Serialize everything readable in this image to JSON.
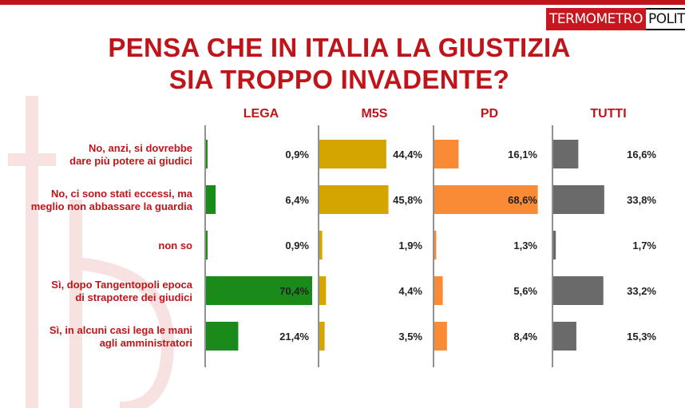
{
  "header": {
    "title_line1": "PENSA CHE IN ITALIA LA GIUSTIZIA",
    "title_line2": "SIA TROPPO INVADENTE?",
    "logo_part1": "TERMOMETRO",
    "logo_part2": "POLITICO"
  },
  "colors": {
    "title": "#c0141a",
    "lega": "#1a8a1a",
    "m5s": "#d4a500",
    "pd": "#f98a36",
    "tutti": "#6a6a6a"
  },
  "chart_data": {
    "type": "bar",
    "orientation": "horizontal",
    "title": "PENSA CHE IN ITALIA LA GIUSTIZIA SIA TROPPO INVADENTE?",
    "categories": [
      "No, anzi, si dovrebbe\ndare più potere ai giudici",
      "No, ci sono stati eccessi, ma\nmeglio non abbassare la guardia",
      "non so",
      "Sì, dopo Tangentopoli epoca\ndi strapotere dei giudici",
      "Sì, in alcuni casi lega le mani\nagli amministratori"
    ],
    "series": [
      {
        "name": "LEGA",
        "values": [
          0.9,
          6.4,
          0.9,
          70.4,
          21.4
        ],
        "labels": [
          "0,9%",
          "6,4%",
          "0,9%",
          "70,4%",
          "21,4%"
        ],
        "color": "#1a8a1a"
      },
      {
        "name": "M5S",
        "values": [
          44.4,
          45.8,
          1.9,
          4.4,
          3.5
        ],
        "labels": [
          "44,4%",
          "45,8%",
          "1,9%",
          "4,4%",
          "3,5%"
        ],
        "color": "#d4a500"
      },
      {
        "name": "PD",
        "values": [
          16.1,
          68.6,
          1.3,
          5.6,
          8.4
        ],
        "labels": [
          "16,1%",
          "68,6%",
          "1,3%",
          "5,6%",
          "8,4%"
        ],
        "color": "#f98a36"
      },
      {
        "name": "TUTTI",
        "values": [
          16.6,
          33.8,
          1.7,
          33.2,
          15.3
        ],
        "labels": [
          "16,6%",
          "33,8%",
          "1,7%",
          "33,2%",
          "15,3%"
        ],
        "color": "#6a6a6a"
      }
    ],
    "xlim": [
      0,
      70.4
    ],
    "grid": false,
    "legend": "top"
  }
}
